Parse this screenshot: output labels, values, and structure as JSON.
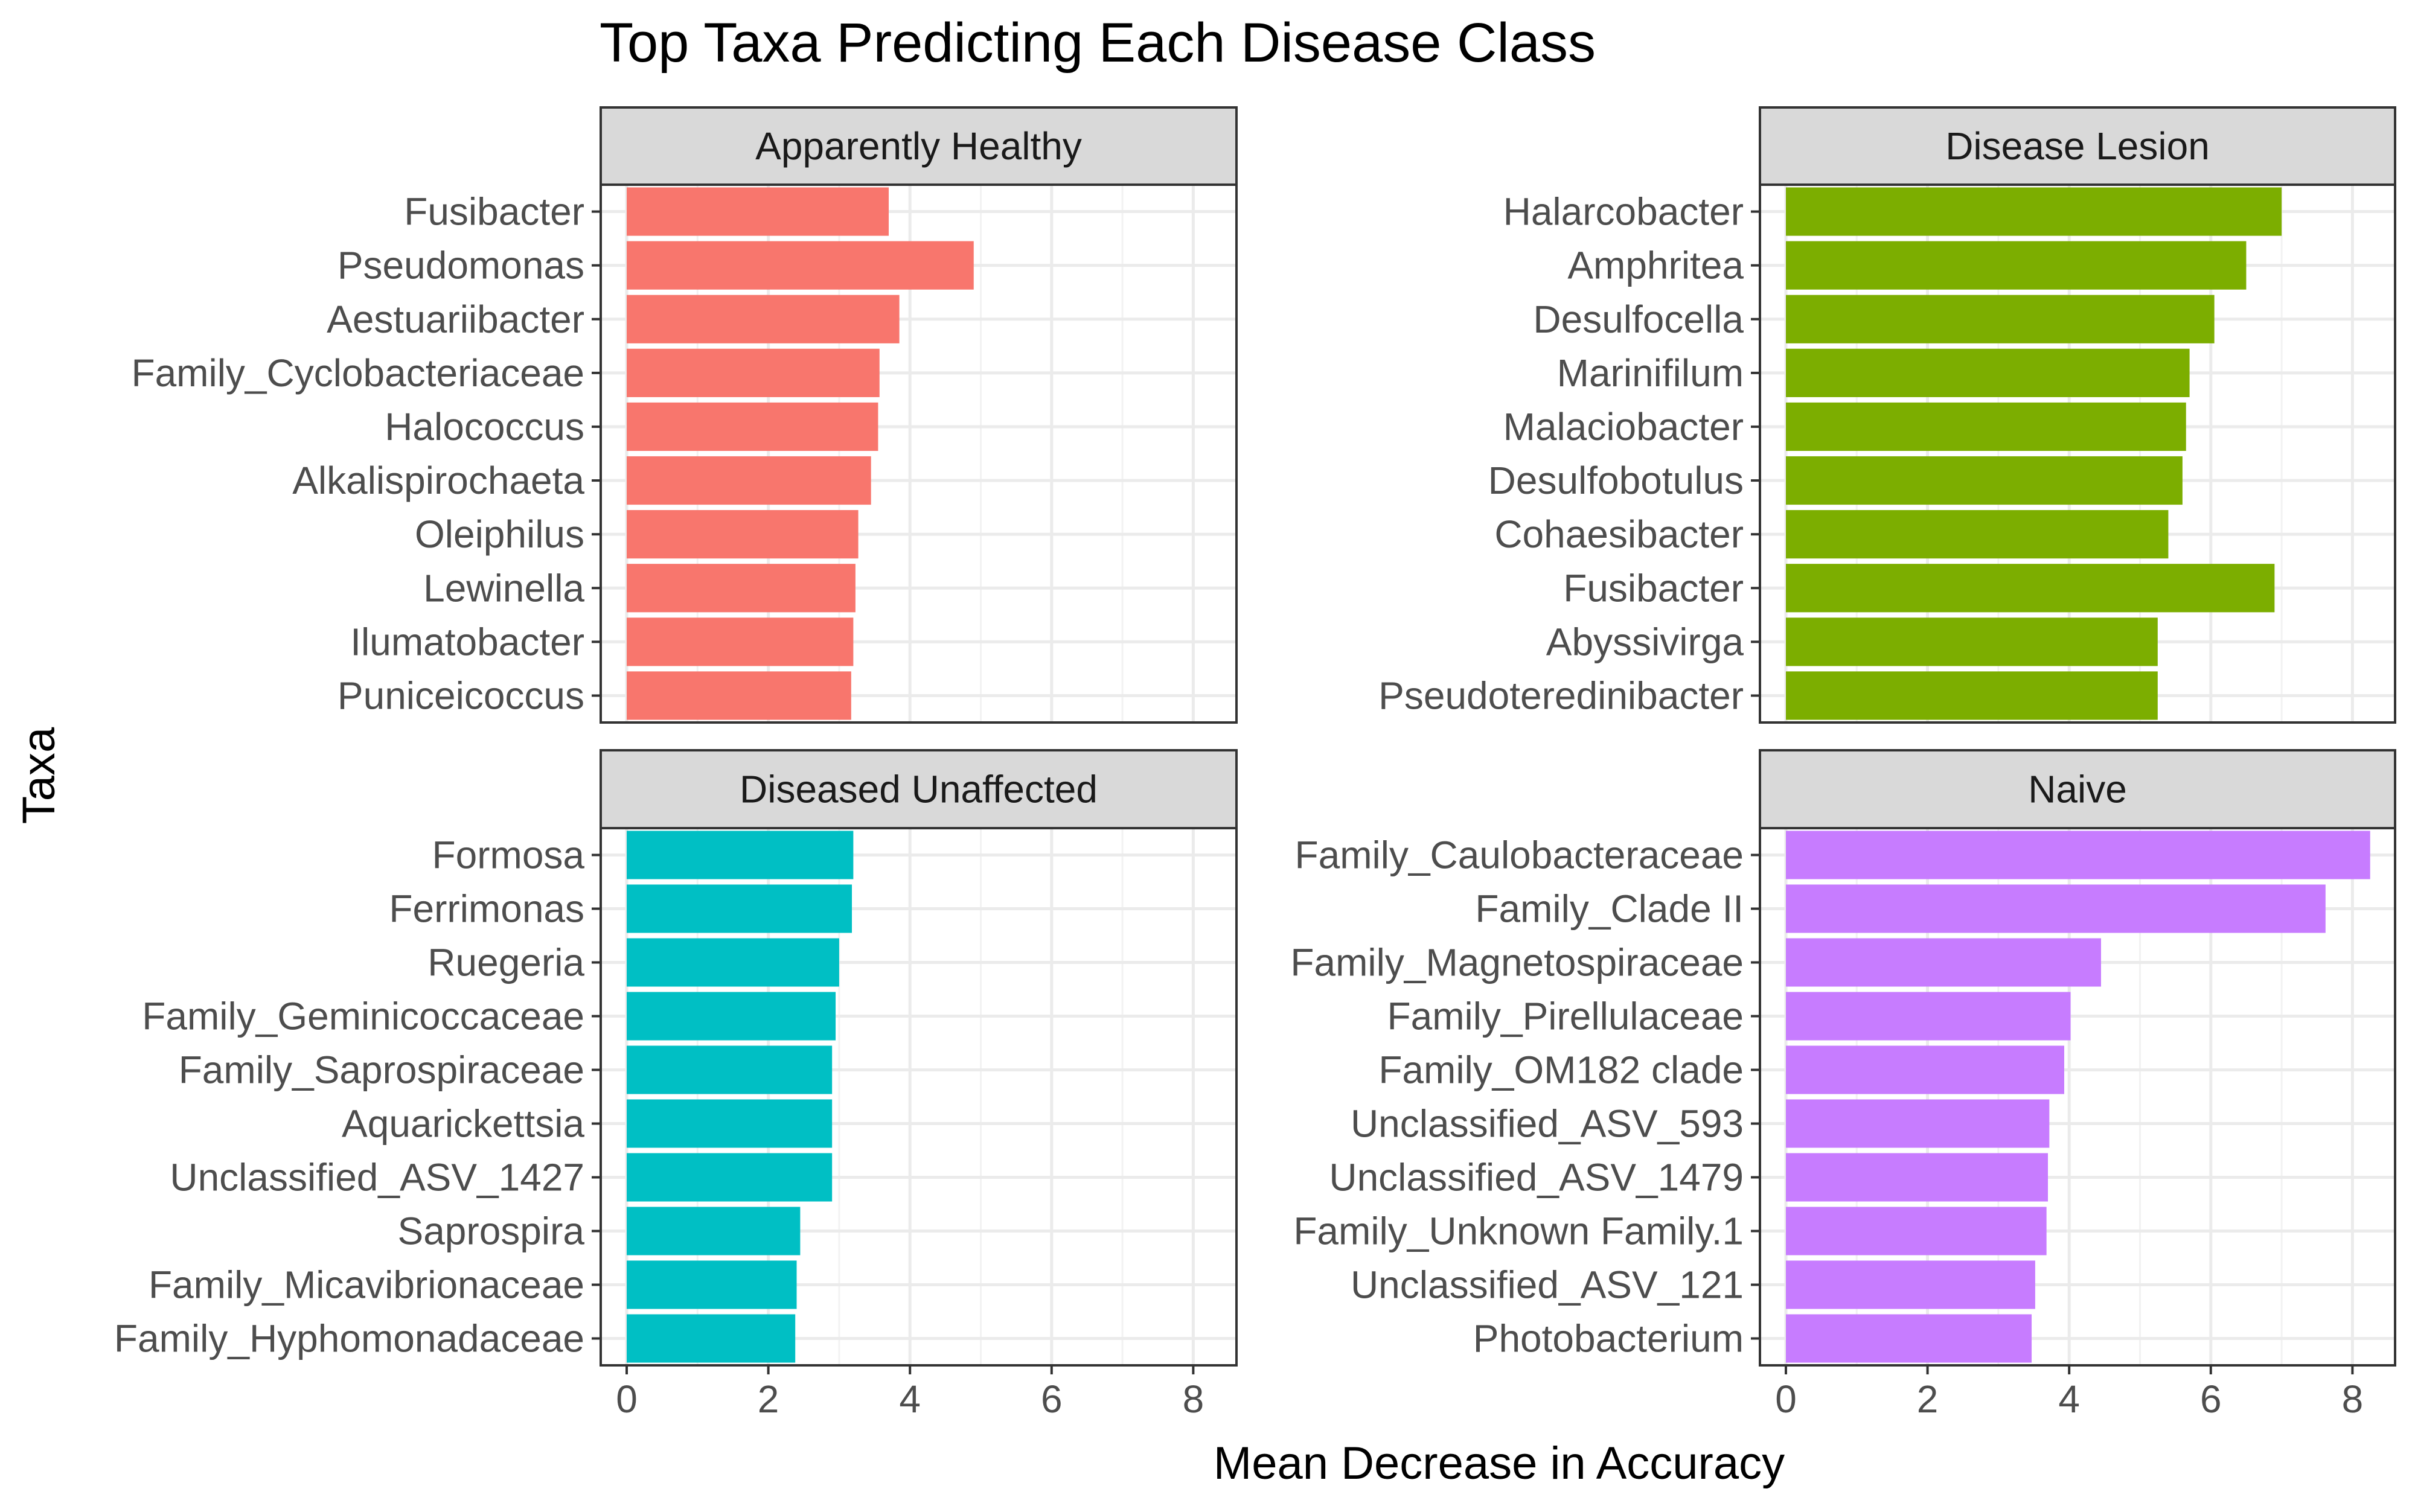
{
  "chart_data": {
    "type": "bar",
    "orientation": "horizontal",
    "title": "Top Taxa Predicting Each Disease Class",
    "xlabel": "Mean Decrease in Accuracy",
    "ylabel": "Taxa",
    "xlim": [
      0,
      8.5
    ],
    "x_ticks": [
      0,
      2,
      4,
      6,
      8
    ],
    "grid": true,
    "facets": [
      {
        "name": "Apparently Healthy",
        "color": "#F8766D",
        "categories": [
          "Fusibacter",
          "Pseudomonas",
          "Aestuariibacter",
          "Family_Cyclobacteriaceae",
          "Halococcus",
          "Alkalispirochaeta",
          "Oleiphilus",
          "Lewinella",
          "Ilumatobacter",
          "Puniceicoccus"
        ],
        "values": [
          3.7,
          4.9,
          3.85,
          3.57,
          3.55,
          3.45,
          3.27,
          3.23,
          3.2,
          3.17
        ]
      },
      {
        "name": "Disease Lesion",
        "color": "#7CAE00",
        "categories": [
          "Halarcobacter",
          "Amphritea",
          "Desulfocella",
          "Marinifilum",
          "Malaciobacter",
          "Desulfobotulus",
          "Cohaesibacter",
          "Fusibacter",
          "Abyssivirga",
          "Pseudoteredinibacter"
        ],
        "values": [
          7.0,
          6.5,
          6.05,
          5.7,
          5.65,
          5.6,
          5.4,
          6.9,
          5.25,
          5.25
        ]
      },
      {
        "name": "Diseased Unaffected",
        "color": "#00BFC4",
        "categories": [
          "Formosa",
          "Ferrimonas",
          "Ruegeria",
          "Family_Geminicoccaceae",
          "Family_Saprospiraceae",
          "Aquarickettsia",
          "Unclassified_ASV_1427",
          "Saprospira",
          "Family_Micavibrionaceae",
          "Family_Hyphomonadaceae"
        ],
        "values": [
          3.2,
          3.18,
          3.0,
          2.95,
          2.9,
          2.9,
          2.9,
          2.45,
          2.4,
          2.38
        ]
      },
      {
        "name": "Naive",
        "color": "#C77CFF",
        "categories": [
          "Family_Caulobacteraceae",
          "Family_Clade II",
          "Family_Magnetospiraceae",
          "Family_Pirellulaceae",
          "Family_OM182 clade",
          "Unclassified_ASV_593",
          "Unclassified_ASV_1479",
          "Family_Unknown Family.1",
          "Unclassified_ASV_121",
          "Photobacterium"
        ],
        "values": [
          8.25,
          7.62,
          4.45,
          4.02,
          3.93,
          3.72,
          3.7,
          3.68,
          3.52,
          3.47
        ]
      }
    ]
  }
}
